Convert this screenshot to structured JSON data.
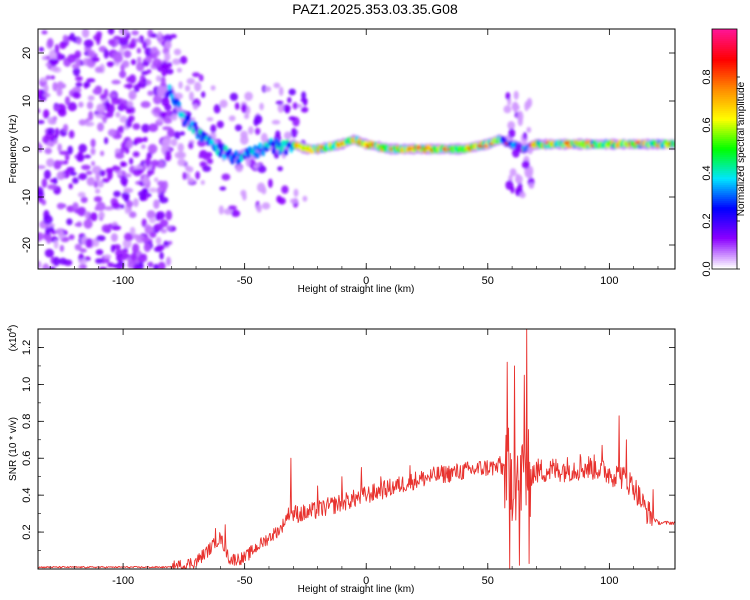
{
  "title": "PAZ1.2025.353.03.35.G08",
  "chart_data": [
    {
      "type": "heatmap",
      "name": "spectrogram",
      "xlabel": "Height of straight line (km)",
      "ylabel": "Frequency (Hz)",
      "xlim": [
        -135,
        127
      ],
      "ylim": [
        -25,
        25
      ],
      "xticks": [
        -100,
        -50,
        0,
        50,
        100
      ],
      "yticks": [
        -20,
        -10,
        0,
        10,
        20
      ],
      "ridge": [
        [
          -80,
          12
        ],
        [
          -75,
          6
        ],
        [
          -70,
          4
        ],
        [
          -65,
          2
        ],
        [
          -60,
          0
        ],
        [
          -55,
          -2
        ],
        [
          -50,
          -1
        ],
        [
          -45,
          -1
        ],
        [
          -40,
          1
        ],
        [
          -35,
          0
        ],
        [
          -30,
          1
        ],
        [
          -25,
          0
        ],
        [
          -20,
          0
        ],
        [
          -10,
          1
        ],
        [
          -5,
          2
        ],
        [
          0,
          1
        ],
        [
          10,
          0
        ],
        [
          20,
          0
        ],
        [
          30,
          0
        ],
        [
          40,
          0
        ],
        [
          50,
          1
        ],
        [
          55,
          2
        ],
        [
          60,
          1
        ],
        [
          65,
          0
        ],
        [
          70,
          1
        ],
        [
          80,
          1
        ],
        [
          90,
          1
        ],
        [
          100,
          1
        ],
        [
          110,
          1
        ],
        [
          120,
          1
        ],
        [
          127,
          1
        ]
      ],
      "colorbar": {
        "label": "Normalized spectral amplitude",
        "range": [
          0,
          1
        ],
        "ticks": [
          0.0,
          0.2,
          0.4,
          0.6,
          0.8
        ],
        "tick_labels": [
          "0.0",
          "0.2",
          "0.4",
          "0.6",
          "0.8"
        ],
        "colors": [
          "#ffffff",
          "#8a00ff",
          "#0000ff",
          "#00e5ff",
          "#00ff00",
          "#ffff00",
          "#ff8c00",
          "#ff0000",
          "#ff1493"
        ]
      }
    },
    {
      "type": "line",
      "name": "snr",
      "xlabel": "Height of straight line (km)",
      "ylabel": "SNR (10 * v/v)",
      "ylabel_scale": "(x10",
      "ylabel_exp": "4",
      "ylabel_close": ")",
      "xlim": [
        -135,
        127
      ],
      "ylim": [
        0,
        1.3
      ],
      "xticks": [
        -100,
        -50,
        0,
        50,
        100
      ],
      "yticks": [
        0.2,
        0.4,
        0.6,
        0.8,
        1.0,
        1.2
      ],
      "ytick_labels": [
        "0.2",
        "0.4",
        "0.6",
        "0.8",
        "1.0",
        "1.2"
      ],
      "color": "#e8322e",
      "points": [
        [
          -135,
          0.01
        ],
        [
          -80,
          0.01
        ],
        [
          -75,
          0.02
        ],
        [
          -70,
          0.04
        ],
        [
          -65,
          0.1
        ],
        [
          -60,
          0.17
        ],
        [
          -56,
          0.05
        ],
        [
          -50,
          0.06
        ],
        [
          -45,
          0.12
        ],
        [
          -40,
          0.17
        ],
        [
          -35,
          0.22
        ],
        [
          -32,
          0.3
        ],
        [
          -25,
          0.3
        ],
        [
          -20,
          0.32
        ],
        [
          -10,
          0.36
        ],
        [
          0,
          0.4
        ],
        [
          10,
          0.44
        ],
        [
          20,
          0.48
        ],
        [
          30,
          0.51
        ],
        [
          40,
          0.53
        ],
        [
          50,
          0.55
        ],
        [
          57,
          0.55
        ],
        [
          60,
          0.5
        ],
        [
          65,
          0.5
        ],
        [
          70,
          0.53
        ],
        [
          80,
          0.54
        ],
        [
          90,
          0.55
        ],
        [
          95,
          0.55
        ],
        [
          100,
          0.52
        ],
        [
          105,
          0.5
        ],
        [
          110,
          0.45
        ],
        [
          115,
          0.32
        ],
        [
          120,
          0.25
        ],
        [
          127,
          0.25
        ]
      ],
      "spikes": [
        [
          -62,
          0.22
        ],
        [
          -58,
          0.24
        ],
        [
          -31,
          0.6
        ],
        [
          -20,
          0.45
        ],
        [
          -10,
          0.5
        ],
        [
          -2,
          0.55
        ],
        [
          6,
          0.5
        ],
        [
          18,
          0.56
        ],
        [
          55,
          0.61
        ],
        [
          58,
          1.12
        ],
        [
          59,
          0.0
        ],
        [
          61,
          1.1
        ],
        [
          63,
          0.02
        ],
        [
          65,
          1.05
        ],
        [
          66,
          1.3
        ],
        [
          67,
          0.03
        ],
        [
          88,
          0.62
        ],
        [
          97,
          0.67
        ],
        [
          104,
          0.83
        ],
        [
          107,
          0.7
        ],
        [
          118,
          0.43
        ]
      ]
    }
  ]
}
